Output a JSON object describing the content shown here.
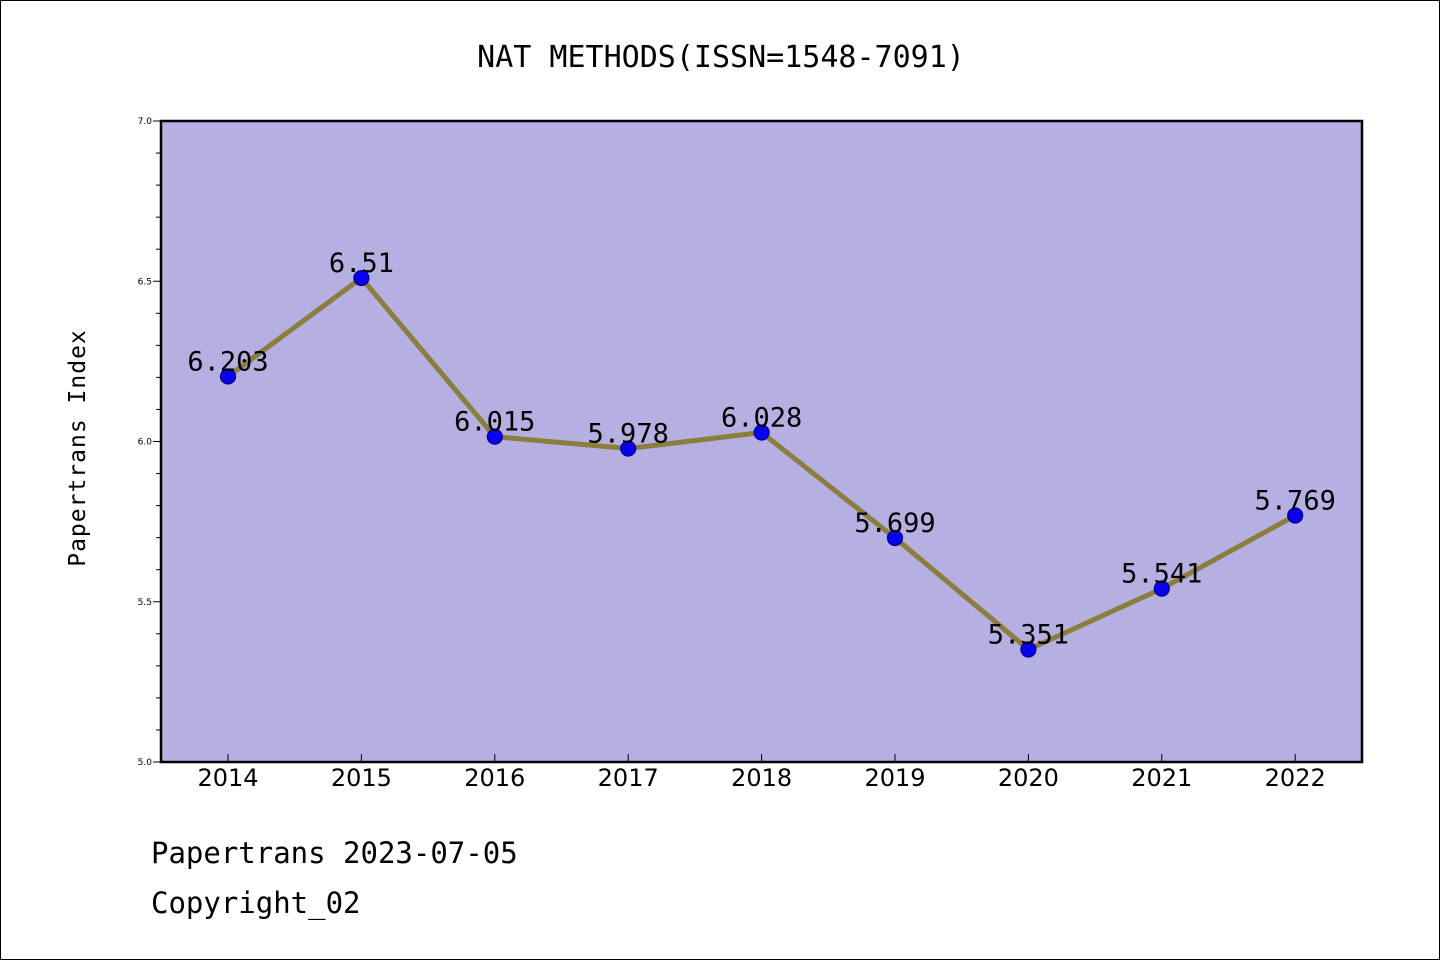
{
  "chart_data": {
    "type": "line",
    "title": "NAT METHODS(ISSN=1548-7091)",
    "xlabel": "",
    "ylabel": "Papertrans Index",
    "categories": [
      "2014",
      "2015",
      "2016",
      "2017",
      "2018",
      "2019",
      "2020",
      "2021",
      "2022"
    ],
    "values": [
      6.203,
      6.51,
      6.015,
      5.978,
      6.028,
      5.699,
      5.351,
      5.541,
      5.769
    ],
    "data_labels": [
      "6.203",
      "6.51",
      "6.015",
      "5.978",
      "6.028",
      "5.699",
      "5.351",
      "5.541",
      "5.769"
    ],
    "ylim": [
      5.0,
      7.0
    ],
    "yticks": [
      "5.0",
      "5.5",
      "6.0",
      "6.5",
      "7.0"
    ],
    "grid": false,
    "colors": {
      "plot_background": "#b5afe2",
      "line": "#8b7d3c",
      "marker": "#0a00f0",
      "marker_edge": "#00008b"
    }
  },
  "footer": {
    "line1": "Papertrans 2023-07-05",
    "line2": "Copyright_02"
  }
}
